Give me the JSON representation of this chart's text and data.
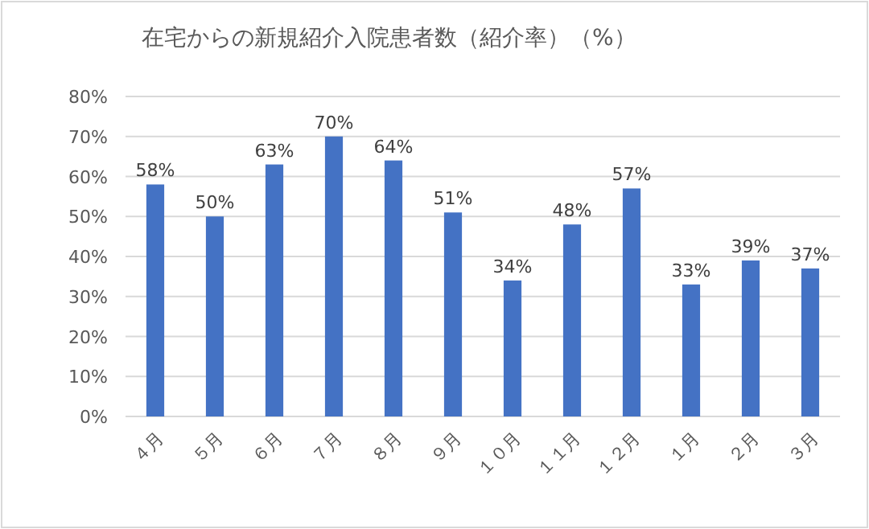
{
  "chart_data": {
    "type": "bar",
    "title": "在宅からの新規紹介入院患者数（紹介率）（%）",
    "categories": [
      "４月",
      "５月",
      "６月",
      "７月",
      "８月",
      "９月",
      "１０月",
      "１１月",
      "１２月",
      "１月",
      "２月",
      "３月"
    ],
    "values": [
      58,
      50,
      63,
      70,
      64,
      51,
      34,
      48,
      57,
      33,
      39,
      37
    ],
    "value_labels": [
      "58%",
      "50%",
      "63%",
      "70%",
      "64%",
      "51%",
      "34%",
      "48%",
      "57%",
      "33%",
      "39%",
      "37%"
    ],
    "color": "#4472c4",
    "ylim": [
      0,
      80
    ],
    "yticks": [
      {
        "value": 0,
        "label": "0%"
      },
      {
        "value": 10,
        "label": "10%"
      },
      {
        "value": 20,
        "label": "20%"
      },
      {
        "value": 30,
        "label": "30%"
      },
      {
        "value": 40,
        "label": "40%"
      },
      {
        "value": 50,
        "label": "50%"
      },
      {
        "value": 60,
        "label": "60%"
      },
      {
        "value": 70,
        "label": "70%"
      },
      {
        "value": 80,
        "label": "80%"
      }
    ],
    "grid": "y"
  }
}
